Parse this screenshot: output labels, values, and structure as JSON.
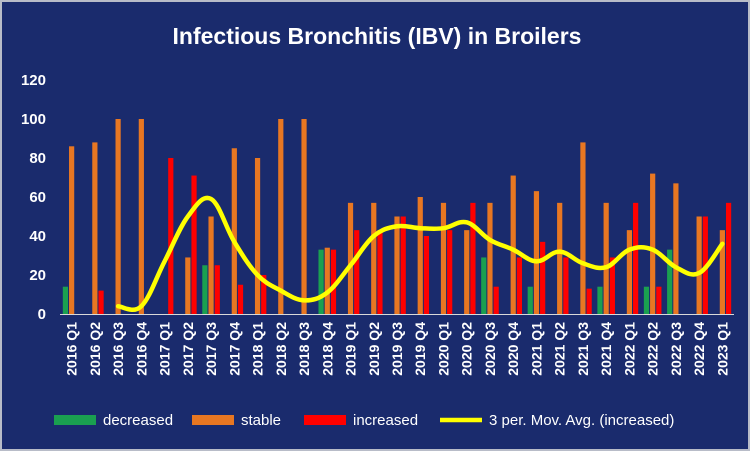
{
  "chart_data": {
    "type": "bar",
    "title": "Infectious Bronchitis (IBV) in Broilers",
    "xlabel": "",
    "ylabel": "",
    "ylim": [
      0,
      120
    ],
    "yticks": [
      0,
      20,
      40,
      60,
      80,
      100,
      120
    ],
    "grid": false,
    "legend_position": "bottom",
    "categories": [
      "2016 Q1",
      "2016 Q2",
      "2016 Q3",
      "2016 Q4",
      "2017 Q1",
      "2017 Q2",
      "2017 Q3",
      "2017 Q4",
      "2018 Q1",
      "2018 Q2",
      "2018 Q3",
      "2018 Q4",
      "2019 Q1",
      "2019 Q2",
      "2019 Q3",
      "2019 Q4",
      "2020 Q1",
      "2020 Q2",
      "2020 Q3",
      "2020 Q4",
      "2021 Q1",
      "2021 Q2",
      "2021 Q3",
      "2021 Q4",
      "2022 Q1",
      "2022 Q2",
      "2022 Q3",
      "2022 Q4",
      "2023 Q1"
    ],
    "series": [
      {
        "name": "decreased",
        "type": "bar",
        "color": "#1aa050",
        "values": [
          14,
          0,
          0,
          0,
          0,
          0,
          25,
          0,
          0,
          0,
          0,
          33,
          0,
          0,
          0,
          0,
          0,
          0,
          29,
          0,
          14,
          0,
          0,
          14,
          0,
          14,
          33,
          0,
          0
        ]
      },
      {
        "name": "stable",
        "type": "bar",
        "color": "#e87722",
        "values": [
          86,
          88,
          100,
          100,
          0,
          29,
          50,
          85,
          80,
          100,
          100,
          34,
          57,
          57,
          50,
          60,
          57,
          43,
          57,
          71,
          63,
          57,
          88,
          57,
          43,
          72,
          67,
          50,
          43
        ]
      },
      {
        "name": "increased",
        "type": "bar",
        "color": "#ff0000",
        "values": [
          0,
          12,
          0,
          0,
          80,
          71,
          25,
          15,
          20,
          0,
          0,
          33,
          43,
          43,
          50,
          40,
          43,
          57,
          14,
          29,
          37,
          29,
          13,
          29,
          57,
          14,
          0,
          50,
          57
        ]
      },
      {
        "name": "3 per. Mov. Avg. (increased)",
        "type": "line",
        "color": "#ffff00",
        "x": [
          "2016 Q3",
          "2016 Q4",
          "2017 Q1",
          "2017 Q2",
          "2017 Q3",
          "2017 Q4",
          "2018 Q1",
          "2018 Q2",
          "2018 Q3",
          "2018 Q4",
          "2019 Q1",
          "2019 Q2",
          "2019 Q3",
          "2019 Q4",
          "2020 Q1",
          "2020 Q2",
          "2020 Q3",
          "2020 Q4",
          "2021 Q1",
          "2021 Q2",
          "2021 Q3",
          "2021 Q4",
          "2022 Q1",
          "2022 Q2",
          "2022 Q3",
          "2022 Q4",
          "2023 Q1"
        ],
        "values": [
          4,
          4,
          27,
          50,
          59,
          37,
          20,
          12,
          7,
          11,
          25,
          40,
          45,
          44,
          44,
          47,
          38,
          33,
          27,
          32,
          26,
          24,
          33,
          33,
          24,
          21,
          36
        ]
      }
    ]
  }
}
